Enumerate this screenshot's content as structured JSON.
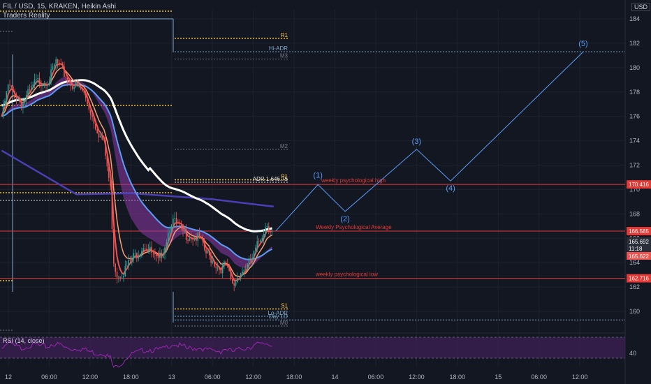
{
  "header": {
    "symbol_line": "FIL / USD, 15, KRAKEN, Heikin Ashi",
    "indicator": "Traders Reality",
    "currency": "USD"
  },
  "rsi": {
    "title": "RSI (14, close)",
    "level_label": "40"
  },
  "colors": {
    "bg": "#131722",
    "grid": "#1e222d",
    "pivot": "#f0c040",
    "adr": "#7fa8c9",
    "m_level": "#787b86",
    "psych": "#e53935",
    "wave": "#5b9cf6",
    "ema_fast": "#ef5350",
    "ema_mid": "#f7a072",
    "ema_slow": "#5b9cf6",
    "sma200": "#ffffff",
    "vwap": "#4a3fb5",
    "cloud": "#8e3aa6",
    "rsi_fill": "#3b1f52"
  },
  "chart_data": {
    "type": "candlestick",
    "y_axis": {
      "min": 158,
      "max": 185,
      "ticks": [
        160,
        162,
        164,
        166,
        168,
        170,
        172,
        174,
        176,
        178,
        180,
        182,
        184
      ]
    },
    "x_ticks": [
      {
        "label": "12",
        "t": 0
      },
      {
        "label": "06:00",
        "t": 6
      },
      {
        "label": "12:00",
        "t": 12
      },
      {
        "label": "18:00",
        "t": 18
      },
      {
        "label": "13",
        "t": 24
      },
      {
        "label": "06:00",
        "t": 30
      },
      {
        "label": "12:00",
        "t": 36
      },
      {
        "label": "18:00",
        "t": 42
      },
      {
        "label": "14",
        "t": 48
      },
      {
        "label": "06:00",
        "t": 54
      },
      {
        "label": "12:00",
        "t": 60
      },
      {
        "label": "18:00",
        "t": 66
      },
      {
        "label": "15",
        "t": 72
      },
      {
        "label": "06:00",
        "t": 78
      },
      {
        "label": "12:00",
        "t": 84
      }
    ],
    "price_path": [
      {
        "t": -1,
        "v": 176.0
      },
      {
        "t": 0,
        "v": 178.5
      },
      {
        "t": 2,
        "v": 177.0
      },
      {
        "t": 4,
        "v": 178.8
      },
      {
        "t": 6,
        "v": 179.0
      },
      {
        "t": 7,
        "v": 180.5
      },
      {
        "t": 9,
        "v": 178.8
      },
      {
        "t": 11,
        "v": 178.0
      },
      {
        "t": 12,
        "v": 176.5
      },
      {
        "t": 13,
        "v": 175.0
      },
      {
        "t": 14,
        "v": 173.8
      },
      {
        "t": 15,
        "v": 170.0
      },
      {
        "t": 15.5,
        "v": 164.0
      },
      {
        "t": 16,
        "v": 163.0
      },
      {
        "t": 17,
        "v": 163.3
      },
      {
        "t": 18,
        "v": 164.2
      },
      {
        "t": 20,
        "v": 165.5
      },
      {
        "t": 21,
        "v": 164.8
      },
      {
        "t": 22,
        "v": 164.0
      },
      {
        "t": 23,
        "v": 165.5
      },
      {
        "t": 24,
        "v": 167.5
      },
      {
        "t": 25,
        "v": 167.0
      },
      {
        "t": 26,
        "v": 166.3
      },
      {
        "t": 28,
        "v": 166.0
      },
      {
        "t": 29,
        "v": 164.8
      },
      {
        "t": 30,
        "v": 164.2
      },
      {
        "t": 31,
        "v": 163.5
      },
      {
        "t": 32,
        "v": 163.8
      },
      {
        "t": 33,
        "v": 162.0
      },
      {
        "t": 34,
        "v": 163.2
      },
      {
        "t": 35,
        "v": 163.6
      },
      {
        "t": 36,
        "v": 164.5
      },
      {
        "t": 37,
        "v": 166.0
      },
      {
        "t": 38,
        "v": 167.2
      },
      {
        "t": 38.5,
        "v": 166.8
      },
      {
        "t": 39,
        "v": 166.2
      }
    ],
    "horizontal_levels": [
      {
        "name": "R1",
        "value": 182.4,
        "label": "R1",
        "kind": "pivot"
      },
      {
        "name": "Hi-ADR",
        "value": 181.3,
        "label": "Hi-ADR",
        "kind": "adr"
      },
      {
        "name": "M3",
        "value": 180.7,
        "label": "M3",
        "kind": "m"
      },
      {
        "name": "M2",
        "value": 173.3,
        "label": "M2",
        "kind": "m"
      },
      {
        "name": "P1",
        "value": 170.8,
        "label": "P1",
        "kind": "pivot"
      },
      {
        "name": "ADR",
        "value": 170.6,
        "label": "ADR 1.646.75",
        "kind": "white"
      },
      {
        "name": "S1",
        "value": 160.2,
        "label": "S1",
        "kind": "pivot"
      },
      {
        "name": "Lo-ADR",
        "value": 159.6,
        "label": "Lo-ADR",
        "kind": "adr"
      },
      {
        "name": "DayLo",
        "value": 159.3,
        "label": "Day LO",
        "kind": "adr"
      },
      {
        "name": "M0",
        "value": 158.8,
        "label": "M0",
        "kind": "m"
      }
    ],
    "psych_levels": [
      {
        "value": 170.416,
        "label": "weekly psychological high",
        "tag": "170.416"
      },
      {
        "value": 166.585,
        "label": "Weekly Psychological Average",
        "tag": "166.585"
      },
      {
        "value": 162.716,
        "label": "weekly psychological low",
        "tag": "162.716"
      }
    ],
    "price_tags": [
      {
        "value": 165.692,
        "label": "165.692",
        "color": "#2a2e39",
        "text_color": "#ffffff"
      },
      {
        "value": 164.95,
        "label": "11:18",
        "color": "#2a2e39",
        "text_color": "#ffffff"
      },
      {
        "value": 165.622,
        "label": "165.622",
        "color": "#ef5350",
        "text_color": "#ffffff"
      }
    ],
    "elliott_waves": [
      {
        "label": "(1)",
        "t": 45.5,
        "v": 170.4
      },
      {
        "label": "(2)",
        "t": 49.5,
        "v": 168.2
      },
      {
        "label": "(3)",
        "t": 60,
        "v": 173.3
      },
      {
        "label": "(4)",
        "t": 65,
        "v": 170.7
      },
      {
        "label": "(5)",
        "t": 84.5,
        "v": 181.3
      }
    ]
  }
}
